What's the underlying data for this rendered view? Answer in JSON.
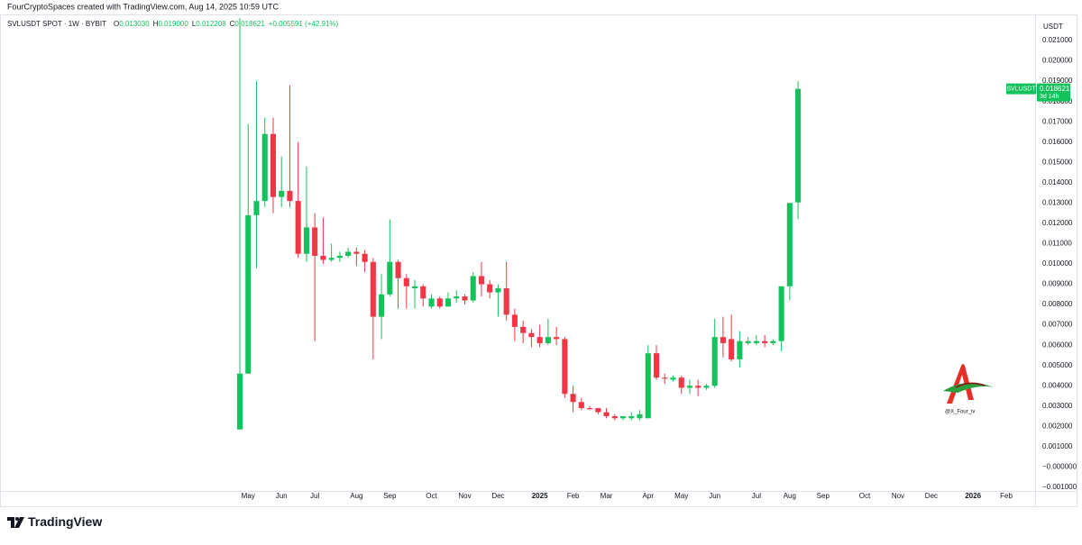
{
  "attribution": "FourCryptoSpaces created with TradingView.com, Aug 14, 2025 10:59 UTC",
  "brand": "TradingView",
  "chart_data": {
    "type": "candlestick",
    "symbol": "SVLUSDT SPOT · 1W · BYBIT",
    "ohlc_legend": [
      {
        "key": "O",
        "value": "0.013030"
      },
      {
        "key": "H",
        "value": "0.019000"
      },
      {
        "key": "L",
        "value": "0.012208"
      },
      {
        "key": "C",
        "value": "0.018621"
      }
    ],
    "change": "+0.005591 (+42.91%)",
    "currency": "USDT",
    "symbol_tag": "SVLUSDT",
    "last_price": "0.018621",
    "countdown": "3d 14h",
    "watermark": "@X_Four_iv",
    "up_color": "#13c25b",
    "down_color": "#f23645",
    "grid": false,
    "categories": [
      null,
      "May",
      null,
      null,
      null,
      "Jun",
      null,
      null,
      null,
      "Jul",
      null,
      null,
      null,
      null,
      "Aug",
      null,
      null,
      null,
      "Sep",
      null,
      null,
      null,
      null,
      "Oct",
      null,
      null,
      null,
      "Nov",
      null,
      null,
      null,
      "Dec",
      null,
      null,
      null,
      null,
      "2025",
      null,
      null,
      null,
      "Feb",
      null,
      null,
      null,
      "Mar",
      null,
      null,
      null,
      null,
      "Apr",
      null,
      null,
      null,
      "May",
      null,
      null,
      null,
      "Jun",
      null,
      null,
      null,
      null,
      "Jul",
      null,
      null,
      null,
      "Aug",
      null,
      null,
      null,
      "Sep",
      null,
      null,
      null,
      null,
      "Oct",
      null,
      null,
      null,
      "Nov",
      null,
      null,
      null,
      "Dec",
      null,
      null,
      null,
      null,
      "2026",
      null,
      null,
      null,
      "Feb",
      null,
      null
    ],
    "open": [
      0.00185,
      0.0046,
      0.0124,
      0.0131,
      0.0164,
      0.0133,
      0.0136,
      0.0131,
      0.0105,
      0.0118,
      0.0104,
      0.0102,
      0.0103,
      0.0104,
      0.0106,
      0.0105,
      0.0101,
      0.0074,
      0.0085,
      0.0101,
      0.0093,
      0.0088,
      0.0089,
      0.0079,
      0.0083,
      0.0079,
      0.0083,
      0.0084,
      0.0082,
      0.0094,
      0.009,
      0.0086,
      0.0088,
      0.0075,
      0.0069,
      0.0066,
      0.0064,
      0.0061,
      0.0064,
      0.0063,
      0.0036,
      0.0032,
      0.0029,
      0.0029,
      0.0027,
      0.0025,
      0.0024,
      0.0024,
      0.0024,
      0.0024,
      0.0056,
      0.0044,
      0.0043,
      0.0044,
      0.0039,
      0.004,
      0.0039,
      0.004,
      0.0064,
      0.0063,
      0.0053,
      0.0061,
      0.0061,
      0.0062,
      0.0061,
      0.0062,
      0.0089,
      0.01303,
      null,
      null,
      null,
      null,
      null,
      null,
      null,
      null,
      null,
      null,
      null,
      null,
      null,
      null,
      null,
      null,
      null,
      null,
      null,
      null,
      null,
      null,
      null,
      null,
      null,
      null,
      null
    ],
    "high": [
      0.0221,
      0.0169,
      0.019,
      0.0172,
      0.0172,
      0.0153,
      0.0188,
      0.016,
      0.0148,
      0.0125,
      0.0123,
      0.011,
      0.0106,
      0.0108,
      0.0108,
      0.0107,
      0.0103,
      0.0095,
      0.0122,
      0.0102,
      0.0095,
      0.0092,
      0.009,
      0.0085,
      0.0084,
      0.0086,
      0.0087,
      0.0085,
      0.0096,
      0.0101,
      0.0092,
      0.009,
      0.0101,
      0.0078,
      0.0072,
      0.0068,
      0.007,
      0.0073,
      0.0069,
      0.0064,
      0.004,
      0.0034,
      0.003,
      0.0029,
      0.0029,
      0.0026,
      0.0025,
      0.0027,
      0.0028,
      0.006,
      0.006,
      0.0046,
      0.0045,
      0.0045,
      0.0043,
      0.0043,
      0.0041,
      0.0073,
      0.0074,
      0.0075,
      0.0067,
      0.0064,
      0.0065,
      0.0065,
      0.0063,
      0.0089,
      0.013,
      0.019,
      null,
      null,
      null,
      null,
      null,
      null,
      null,
      null,
      null,
      null,
      null,
      null,
      null,
      null,
      null,
      null,
      null,
      null,
      null,
      null,
      null,
      null,
      null,
      null,
      null,
      null,
      null
    ],
    "low": [
      0.00185,
      0.0046,
      0.0098,
      0.0128,
      0.0125,
      0.0128,
      0.0128,
      0.0103,
      0.0101,
      0.0062,
      0.01,
      0.0101,
      0.0101,
      0.0103,
      0.0099,
      0.0096,
      0.0053,
      0.0063,
      0.0084,
      0.0078,
      0.0078,
      0.0078,
      0.0079,
      0.0078,
      0.0078,
      0.0079,
      0.0081,
      0.008,
      0.0081,
      0.0084,
      0.0083,
      0.0074,
      0.0072,
      0.0062,
      0.0061,
      0.0059,
      0.0059,
      0.006,
      0.006,
      0.0034,
      0.0027,
      0.0028,
      0.0028,
      0.0026,
      0.0024,
      0.0023,
      0.0023,
      0.0023,
      0.0023,
      0.0024,
      0.0043,
      0.0041,
      0.0042,
      0.0036,
      0.0036,
      0.0035,
      0.0038,
      0.0039,
      0.0054,
      0.0052,
      0.0049,
      0.006,
      0.006,
      0.0059,
      0.006,
      0.0057,
      0.0082,
      0.012208,
      null,
      null,
      null,
      null,
      null,
      null,
      null,
      null,
      null,
      null,
      null,
      null,
      null,
      null,
      null,
      null,
      null,
      null,
      null,
      null,
      null,
      null,
      null,
      null,
      null,
      null,
      null
    ],
    "close": [
      0.0046,
      0.0124,
      0.0131,
      0.0164,
      0.0133,
      0.0136,
      0.0131,
      0.0105,
      0.0118,
      0.0104,
      0.0102,
      0.0103,
      0.0104,
      0.0106,
      0.0105,
      0.0101,
      0.0074,
      0.0085,
      0.0101,
      0.0093,
      0.0089,
      0.0089,
      0.0083,
      0.0083,
      0.0079,
      0.0083,
      0.0084,
      0.0082,
      0.0094,
      0.009,
      0.0086,
      0.0088,
      0.0075,
      0.0069,
      0.0066,
      0.0064,
      0.0061,
      0.0064,
      0.0063,
      0.0036,
      0.0032,
      0.0029,
      0.00285,
      0.0027,
      0.0025,
      0.0024,
      0.0025,
      0.0025,
      0.0026,
      0.0056,
      0.0044,
      0.00435,
      0.0044,
      0.0039,
      0.004,
      0.0039,
      0.004,
      0.0064,
      0.0061,
      0.0053,
      0.0062,
      0.0062,
      0.0062,
      0.0061,
      0.0062,
      0.0089,
      0.013,
      0.018621,
      null,
      null,
      null,
      null,
      null,
      null,
      null,
      null,
      null,
      null,
      null,
      null,
      null,
      null,
      null,
      null,
      null,
      null,
      null,
      null,
      null,
      null,
      null,
      null,
      null,
      null,
      null
    ],
    "ylim": [
      -0.00118,
      0.0222
    ],
    "yticks": [
      {
        "value": -0.001,
        "label": "−0.001000"
      },
      {
        "value": 0,
        "label": "−0.000000"
      },
      {
        "value": 0.001,
        "label": "0.001000"
      },
      {
        "value": 0.002,
        "label": "0.002000"
      },
      {
        "value": 0.003,
        "label": "0.003000"
      },
      {
        "value": 0.004,
        "label": "0.004000"
      },
      {
        "value": 0.005,
        "label": "0.005000"
      },
      {
        "value": 0.006,
        "label": "0.006000"
      },
      {
        "value": 0.007,
        "label": "0.007000"
      },
      {
        "value": 0.008,
        "label": "0.008000"
      },
      {
        "value": 0.009,
        "label": "0.009000"
      },
      {
        "value": 0.01,
        "label": "0.010000"
      },
      {
        "value": 0.011,
        "label": "0.011000"
      },
      {
        "value": 0.012,
        "label": "0.012000"
      },
      {
        "value": 0.013,
        "label": "0.013000"
      },
      {
        "value": 0.014,
        "label": "0.014000"
      },
      {
        "value": 0.015,
        "label": "0.015000"
      },
      {
        "value": 0.016,
        "label": "0.016000"
      },
      {
        "value": 0.017,
        "label": "0.017000"
      },
      {
        "value": 0.018,
        "label": "0.018000"
      },
      {
        "value": 0.019,
        "label": "0.019000"
      },
      {
        "value": 0.02,
        "label": "0.020000"
      },
      {
        "value": 0.021,
        "label": "0.021000"
      }
    ]
  }
}
